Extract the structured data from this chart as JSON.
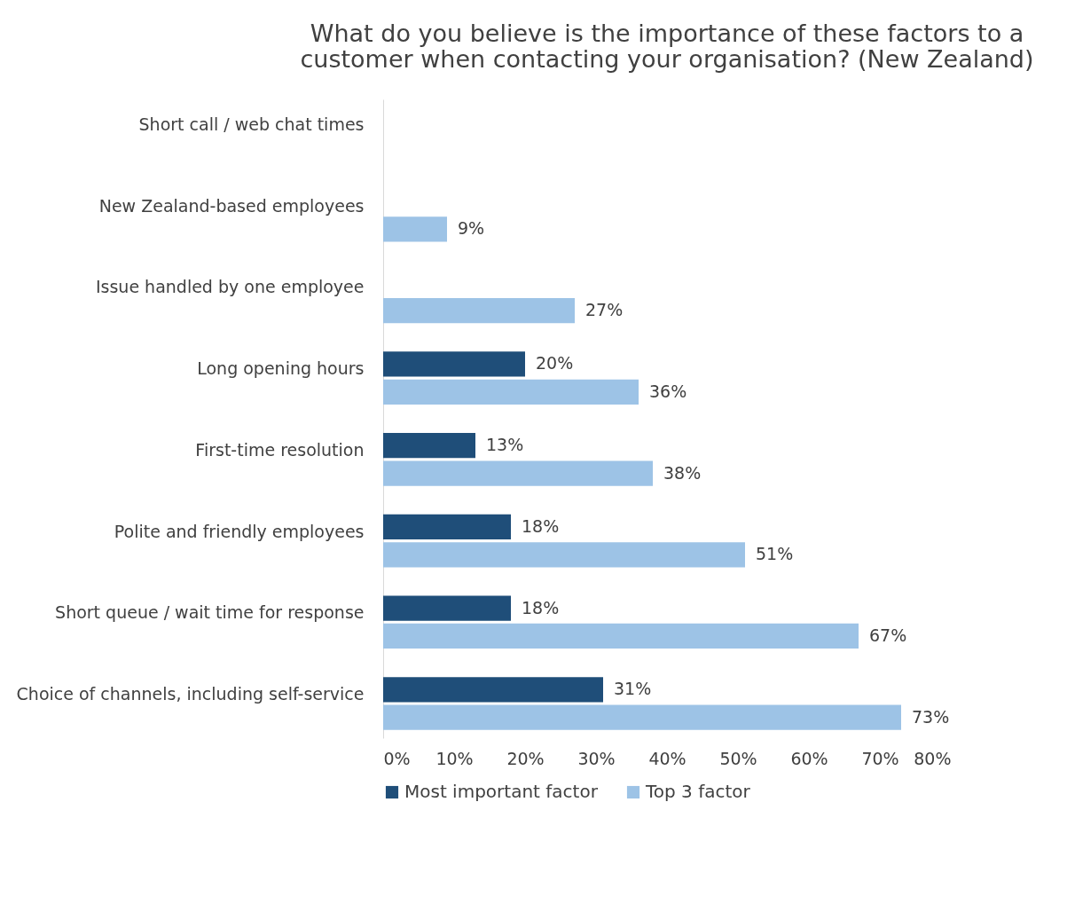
{
  "chart_data": {
    "type": "bar",
    "orientation": "horizontal",
    "title": [
      "What do you believe is the importance of these factors to a",
      "customer when contacting your organisation? (New Zealand)"
    ],
    "categories": [
      "Short call / web chat times",
      "New Zealand-based employees",
      "Issue handled by one employee",
      "Long opening hours",
      "First-time resolution",
      "Polite and friendly employees",
      "Short queue / wait time for response",
      "Choice of channels, including self-service"
    ],
    "series": [
      {
        "name": "Most important factor",
        "color": "#1f4e79",
        "values": [
          null,
          null,
          null,
          20,
          13,
          18,
          18,
          31
        ],
        "value_labels": [
          null,
          null,
          null,
          "20%",
          "13%",
          "18%",
          "18%",
          "31%"
        ]
      },
      {
        "name": "Top 3 factor",
        "color": "#9dc3e6",
        "values": [
          null,
          9,
          27,
          36,
          38,
          51,
          67,
          73
        ],
        "value_labels": [
          null,
          "9%",
          "27%",
          "36%",
          "38%",
          "51%",
          "67%",
          "73%"
        ]
      }
    ],
    "xlim": [
      0,
      80
    ],
    "xticks": [
      {
        "value": 0,
        "label": "0%"
      },
      {
        "value": 10,
        "label": "10%"
      },
      {
        "value": 20,
        "label": "20%"
      },
      {
        "value": 30,
        "label": "30%"
      },
      {
        "value": 40,
        "label": "40%"
      },
      {
        "value": 50,
        "label": "50%"
      },
      {
        "value": 60,
        "label": "60%"
      },
      {
        "value": 70,
        "label": "70%"
      },
      {
        "value": 80,
        "label": "80%"
      }
    ],
    "grid": false,
    "legend": "bottom"
  }
}
